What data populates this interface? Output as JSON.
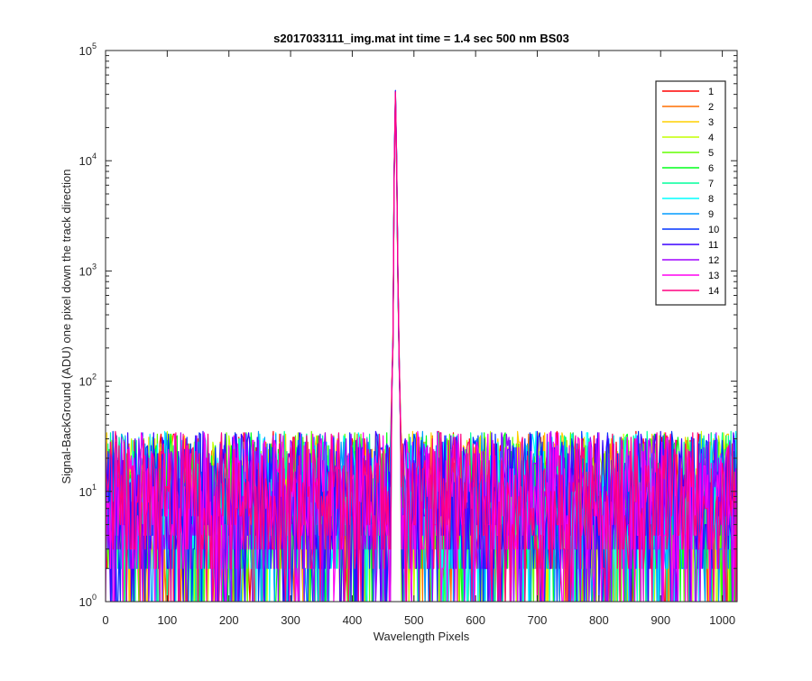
{
  "chart_data": {
    "type": "line",
    "title": "s2017033111_img.mat int time = 1.4 sec  500 nm BS03",
    "xlabel": "Wavelength Pixels",
    "ylabel": "Signal-BackGround (ADU) one pixel down the track direction",
    "yscale": "log",
    "xlim": [
      0,
      1024
    ],
    "ylim": [
      1,
      100000
    ],
    "x_ticks": [
      0,
      100,
      200,
      300,
      400,
      500,
      600,
      700,
      800,
      900,
      1000
    ],
    "y_ticks": [
      {
        "value": 1,
        "base": "10",
        "exp": "0"
      },
      {
        "value": 10,
        "base": "10",
        "exp": "1"
      },
      {
        "value": 100,
        "base": "10",
        "exp": "2"
      },
      {
        "value": 1000,
        "base": "10",
        "exp": "3"
      },
      {
        "value": 10000,
        "base": "10",
        "exp": "4"
      },
      {
        "value": 100000,
        "base": "10",
        "exp": "5"
      }
    ],
    "grid": false,
    "legend_position": "top-right",
    "peak": {
      "x": [
        463,
        466,
        468,
        470,
        472,
        475,
        478
      ],
      "y": [
        40,
        250,
        8000,
        38000,
        9000,
        300,
        45
      ]
    },
    "noise": {
      "typical_range": [
        2,
        35
      ],
      "floor": 1
    },
    "series": [
      {
        "name": "1",
        "color": "#ff0000"
      },
      {
        "name": "2",
        "color": "#ff6e00"
      },
      {
        "name": "3",
        "color": "#ffd000"
      },
      {
        "name": "4",
        "color": "#c4ff00"
      },
      {
        "name": "5",
        "color": "#62ff00"
      },
      {
        "name": "6",
        "color": "#00ff1a"
      },
      {
        "name": "7",
        "color": "#00ff9c"
      },
      {
        "name": "8",
        "color": "#00ffff"
      },
      {
        "name": "9",
        "color": "#009cff"
      },
      {
        "name": "10",
        "color": "#0033ff"
      },
      {
        "name": "11",
        "color": "#3a00ff"
      },
      {
        "name": "12",
        "color": "#a000ff"
      },
      {
        "name": "13",
        "color": "#ff00f0"
      },
      {
        "name": "14",
        "color": "#ff0080"
      }
    ]
  }
}
